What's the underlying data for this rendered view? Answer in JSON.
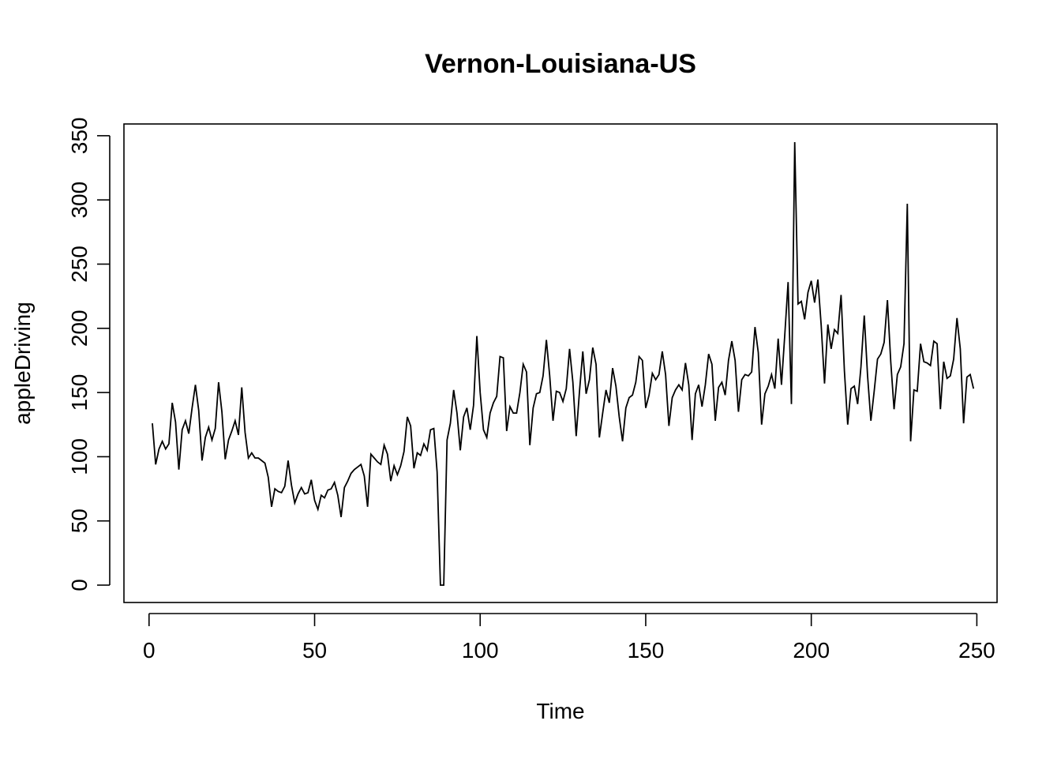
{
  "chart_data": {
    "type": "line",
    "title": "Vernon-Louisiana-US",
    "xlabel": "Time",
    "ylabel": "appleDriving",
    "xlim": [
      1,
      248
    ],
    "ylim": [
      0,
      345
    ],
    "xticks": [
      0,
      50,
      100,
      150,
      200,
      250
    ],
    "yticks": [
      0,
      50,
      100,
      150,
      200,
      250,
      300,
      350
    ],
    "grid": false,
    "legend": "none",
    "line_color": "#000000",
    "series": [
      {
        "x_start": 1,
        "values": [
          126,
          94,
          106,
          112,
          106,
          110,
          142,
          127,
          90,
          121,
          128,
          118,
          138,
          156,
          136,
          97,
          115,
          123,
          113,
          122,
          158,
          135,
          98,
          113,
          120,
          128,
          117,
          154,
          119,
          99,
          103,
          99,
          99,
          97,
          95,
          84,
          61,
          75,
          73,
          72,
          77,
          97,
          78,
          64,
          71,
          76,
          71,
          72,
          82,
          66,
          59,
          70,
          68,
          74,
          75,
          80,
          70,
          53,
          76,
          81,
          87,
          90,
          92,
          94,
          85,
          61,
          102,
          99,
          96,
          94,
          109,
          102,
          81,
          93,
          86,
          93,
          104,
          131,
          124,
          91,
          103,
          101,
          110,
          105,
          121,
          122,
          88,
          0,
          0,
          113,
          126,
          152,
          134,
          105,
          131,
          138,
          121,
          140,
          194,
          150,
          121,
          115,
          134,
          142,
          147,
          178,
          177,
          120,
          139,
          134,
          134,
          150,
          172,
          166,
          109,
          138,
          149,
          150,
          163,
          191,
          163,
          128,
          151,
          150,
          143,
          153,
          184,
          158,
          116,
          151,
          182,
          149,
          160,
          185,
          172,
          115,
          134,
          152,
          142,
          169,
          155,
          131,
          112,
          138,
          146,
          148,
          158,
          178,
          175,
          138,
          148,
          165,
          160,
          164,
          182,
          164,
          124,
          146,
          152,
          156,
          152,
          173,
          156,
          113,
          149,
          156,
          139,
          156,
          180,
          172,
          128,
          154,
          158,
          148,
          175,
          190,
          175,
          135,
          160,
          164,
          163,
          166,
          201,
          181,
          125,
          149,
          155,
          164,
          153,
          192,
          156,
          195,
          236,
          141,
          345,
          219,
          221,
          207,
          228,
          237,
          220,
          238,
          202,
          157,
          203,
          184,
          199,
          196,
          226,
          167,
          125,
          153,
          155,
          141,
          170,
          210,
          163,
          128,
          151,
          176,
          180,
          189,
          222,
          174,
          137,
          164,
          170,
          188,
          297,
          112,
          152,
          151,
          188,
          174,
          173,
          171,
          190,
          188,
          137,
          174,
          161,
          163,
          176,
          208,
          184,
          126,
          162,
          164,
          153
        ]
      }
    ]
  }
}
